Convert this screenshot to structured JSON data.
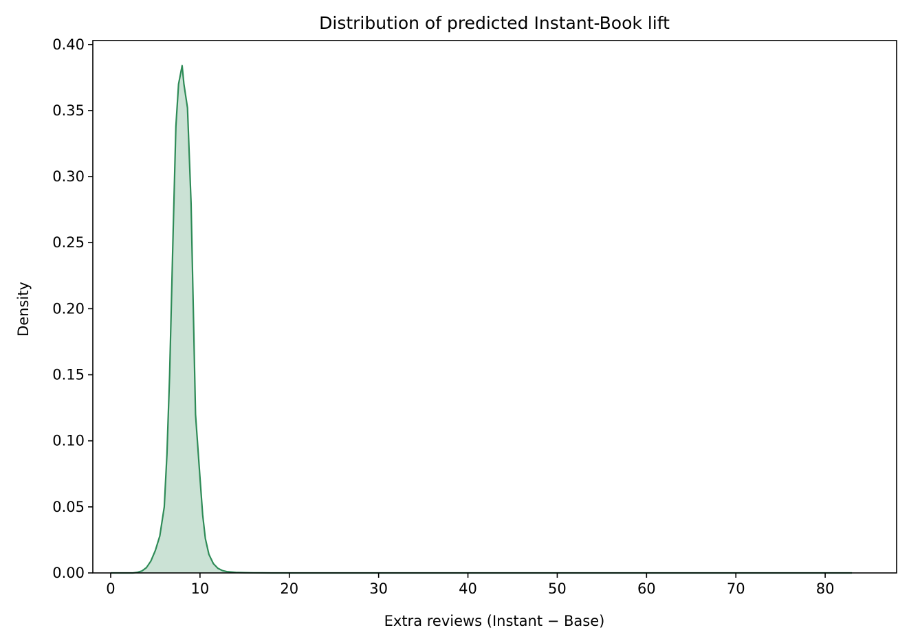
{
  "chart_data": {
    "type": "area",
    "title": "Distribution of predicted Instant-Book lift",
    "xlabel": "Extra reviews (Instant − Base)",
    "ylabel": "Density",
    "xlim": [
      -2,
      88
    ],
    "ylim": [
      0,
      0.403
    ],
    "x_ticks": [
      0,
      10,
      20,
      30,
      40,
      50,
      60,
      70,
      80
    ],
    "y_ticks": [
      0.0,
      0.05,
      0.1,
      0.15,
      0.2,
      0.25,
      0.3,
      0.35,
      0.4
    ],
    "x_tick_labels": [
      "0",
      "10",
      "20",
      "30",
      "40",
      "50",
      "60",
      "70",
      "80"
    ],
    "y_tick_labels": [
      "0.00",
      "0.05",
      "0.10",
      "0.15",
      "0.20",
      "0.25",
      "0.30",
      "0.35",
      "0.40"
    ],
    "grid": false,
    "series": [
      {
        "color": "#2e8b57",
        "fill_color": "#2e8b57",
        "fill_opacity": 0.25,
        "x": [
          0.0,
          2.5,
          3.0,
          3.5,
          4.0,
          4.5,
          5.0,
          5.5,
          6.0,
          6.3,
          6.6,
          7.0,
          7.3,
          7.6,
          8.0,
          8.2,
          8.6,
          9.0,
          9.5,
          10.0,
          10.3,
          10.6,
          11.0,
          11.5,
          12.0,
          12.5,
          13.0,
          14.0,
          15.0,
          16.0,
          18.0,
          20.0,
          30.0,
          40.0,
          50.0,
          60.0,
          70.0,
          83.0
        ],
        "y": [
          0.0,
          0.0,
          0.0005,
          0.0015,
          0.004,
          0.009,
          0.017,
          0.028,
          0.05,
          0.09,
          0.15,
          0.26,
          0.338,
          0.37,
          0.384,
          0.37,
          0.352,
          0.28,
          0.12,
          0.072,
          0.044,
          0.026,
          0.014,
          0.007,
          0.0035,
          0.0018,
          0.001,
          0.0004,
          0.0002,
          0.0001,
          0.0,
          0.0,
          0.0,
          0.0,
          0.0,
          0.0,
          0.0,
          0.0
        ]
      }
    ]
  }
}
